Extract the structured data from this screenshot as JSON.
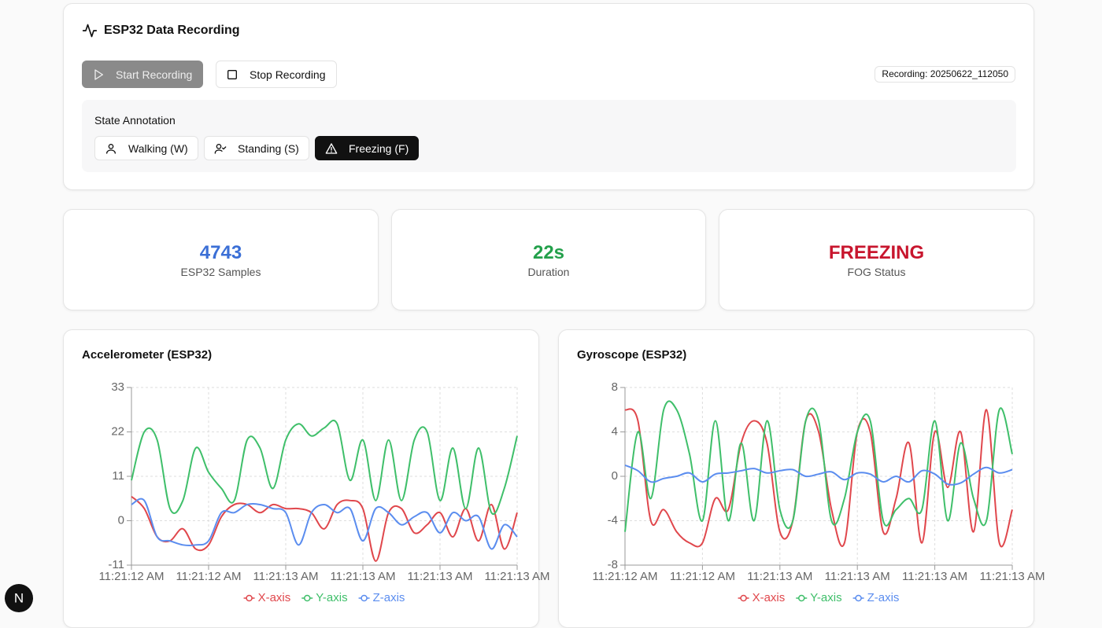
{
  "header": {
    "title": "ESP32 Data Recording",
    "start_button": "Start Recording",
    "stop_button": "Stop Recording",
    "recording_label": "Recording: 20250622_112050"
  },
  "annotation": {
    "title": "State Annotation",
    "buttons": [
      "Walking (W)",
      "Standing (S)",
      "Freezing (F)"
    ]
  },
  "stats": [
    {
      "value": 4743,
      "label": "ESP32 Samples",
      "color": "#3b6fd6"
    },
    {
      "value": "22s",
      "label": "Duration",
      "color": "#23a04b"
    },
    {
      "value": "FREEZING",
      "label": "FOG Status",
      "color": "#c8162e"
    }
  ],
  "dev_badge": "N",
  "chart_data": [
    {
      "type": "line",
      "title": "Accelerometer (ESP32)",
      "ylim": [
        -11,
        33
      ],
      "yticks": [
        -11,
        0,
        11,
        22,
        33
      ],
      "grid": true,
      "categories": [
        "11:21:12 AM",
        null,
        null,
        null,
        null,
        null,
        "11:21:12 AM",
        null,
        null,
        null,
        null,
        null,
        "11:21:13 AM",
        null,
        null,
        null,
        null,
        null,
        "11:21:13 AM",
        null,
        null,
        null,
        null,
        null,
        "11:21:13 AM",
        null,
        null,
        null,
        null,
        null,
        "11:21:13 AM"
      ],
      "series": [
        {
          "name": "X-axis",
          "color": "#e0474c",
          "values": [
            6,
            3,
            -4,
            -5,
            -2,
            -7,
            -6,
            1,
            4,
            4,
            2,
            4,
            3,
            3,
            2,
            -2,
            4,
            5,
            3,
            -10,
            2,
            3,
            -3,
            -1,
            2,
            -4,
            3,
            -5,
            4,
            -7,
            2
          ]
        },
        {
          "name": "Y-axis",
          "color": "#3fbf6a",
          "values": [
            10,
            22,
            20,
            3,
            5,
            18,
            12,
            8,
            5,
            20,
            18,
            8,
            20,
            24,
            21,
            23,
            24,
            10,
            20,
            5,
            20,
            5,
            20,
            22,
            5,
            18,
            3,
            18,
            2,
            8,
            21
          ]
        },
        {
          "name": "Z-axis",
          "color": "#5b8def",
          "values": [
            4,
            5,
            -4,
            -5,
            -6,
            -6,
            -5,
            2,
            2,
            4,
            4,
            3,
            2,
            -6,
            2,
            4,
            2,
            3,
            -5,
            3,
            2,
            -1,
            1,
            2,
            -3,
            2,
            0,
            1,
            -7,
            -1,
            -4
          ]
        }
      ]
    },
    {
      "type": "line",
      "title": "Gyroscope (ESP32)",
      "ylim": [
        -8,
        8
      ],
      "yticks": [
        -8,
        -4,
        0,
        4,
        8
      ],
      "grid": true,
      "categories": [
        "11:21:12 AM",
        null,
        null,
        null,
        null,
        null,
        "11:21:12 AM",
        null,
        null,
        null,
        null,
        null,
        "11:21:13 AM",
        null,
        null,
        null,
        null,
        null,
        "11:21:13 AM",
        null,
        null,
        null,
        null,
        null,
        "11:21:13 AM",
        null,
        null,
        null,
        null,
        null,
        "11:21:13 AM"
      ],
      "series": [
        {
          "name": "X-axis",
          "color": "#e0474c",
          "values": [
            6,
            5,
            -4,
            -3,
            -5,
            -6,
            -6,
            -2,
            -3,
            3,
            5,
            3,
            -5,
            -4,
            5,
            4,
            -3,
            -6,
            4,
            4,
            -5,
            -2,
            3,
            -6,
            4,
            -1,
            4,
            -5,
            6,
            -6,
            -3
          ]
        },
        {
          "name": "Y-axis",
          "color": "#3fbf6a",
          "values": [
            -5,
            4,
            -2,
            6,
            6,
            2,
            -4,
            5,
            -4,
            3,
            -4,
            5,
            -3,
            -4,
            5,
            5,
            -4,
            -2,
            4,
            5,
            -4,
            -3,
            -2,
            -3,
            5,
            -4,
            3,
            -2,
            -4,
            6,
            2
          ]
        },
        {
          "name": "Z-axis",
          "color": "#5b8def",
          "values": [
            1,
            0.5,
            -0.5,
            -0.2,
            0,
            0.3,
            -0.5,
            0.2,
            0.3,
            0.5,
            0.7,
            0.3,
            0.5,
            0.6,
            0,
            0.2,
            0.4,
            -0.3,
            0.3,
            0.2,
            -0.5,
            0,
            -0.5,
            0.5,
            0.2,
            -0.7,
            -0.6,
            0.2,
            0.8,
            0.3,
            0.6
          ]
        }
      ]
    }
  ]
}
